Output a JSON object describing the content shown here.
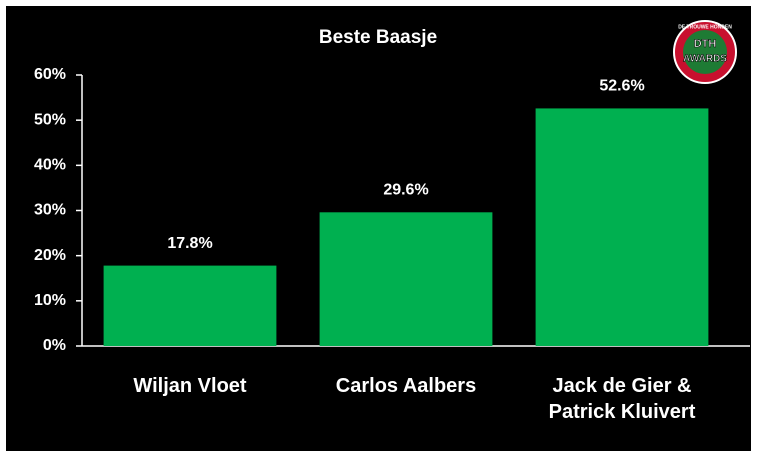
{
  "chart_data": {
    "type": "bar",
    "title": "Beste Baasje",
    "categories": [
      "Wiljan Vloet",
      "Carlos Aalbers",
      "Jack de Gier & Patrick Kluivert"
    ],
    "values": [
      17.8,
      29.6,
      52.6
    ],
    "value_labels": [
      "17.8%",
      "29.6%",
      "52.6%"
    ],
    "color": "#00b050",
    "ylim": [
      0,
      60
    ],
    "yticks": [
      {
        "value": 0,
        "label": "0%"
      },
      {
        "value": 10,
        "label": "10%"
      },
      {
        "value": 20,
        "label": "20%"
      },
      {
        "value": 30,
        "label": "30%"
      },
      {
        "value": 40,
        "label": "40%"
      },
      {
        "value": 50,
        "label": "50%"
      },
      {
        "value": 60,
        "label": "60%"
      }
    ],
    "grid": false,
    "logo": {
      "ring": "DE TROUWE HONDEN",
      "top": "DTH",
      "bottom": "AWARDS"
    }
  }
}
